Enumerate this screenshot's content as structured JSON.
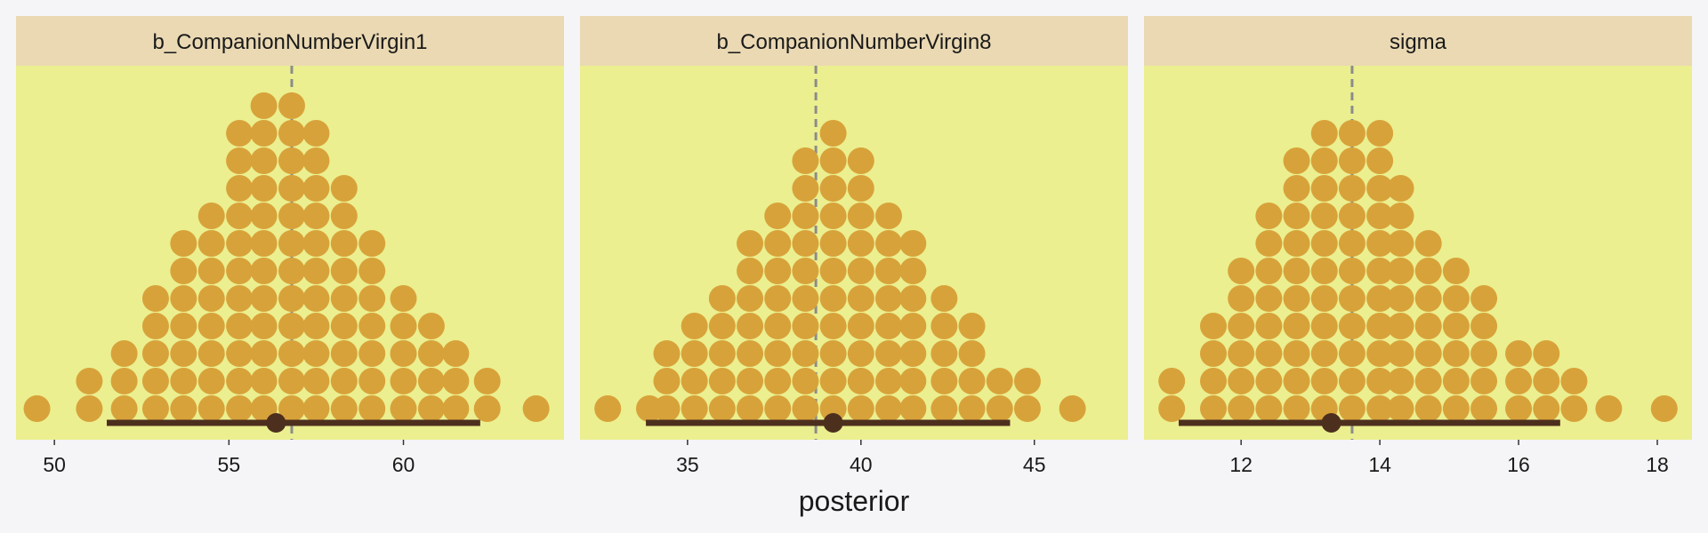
{
  "chart_data": {
    "type": "dotplot",
    "xlabel": "posterior",
    "ylabel": "",
    "grid": false,
    "colors": {
      "page_background": "#f5f5f7",
      "panel_background": "#ebef8f",
      "strip_background": "#ead9b3",
      "dot": "#d8a23a",
      "interval": "#4d2f1e",
      "reference_line": "#8c8c8c"
    },
    "facets": [
      {
        "title": "b_CompanionNumberVirgin1",
        "xlim": [
          48.9,
          64.6
        ],
        "ticks": [
          50,
          55,
          60
        ],
        "reference_line": 56.8,
        "point_estimate": 56.35,
        "interval": [
          51.5,
          62.2
        ],
        "stacks": [
          {
            "x": 49.5,
            "count": 1
          },
          {
            "x": 51.0,
            "count": 2
          },
          {
            "x": 52.0,
            "count": 3
          },
          {
            "x": 52.9,
            "count": 5
          },
          {
            "x": 53.7,
            "count": 7
          },
          {
            "x": 54.5,
            "count": 8
          },
          {
            "x": 55.3,
            "count": 11
          },
          {
            "x": 56.0,
            "count": 12
          },
          {
            "x": 56.8,
            "count": 12
          },
          {
            "x": 57.5,
            "count": 11
          },
          {
            "x": 58.3,
            "count": 9
          },
          {
            "x": 59.1,
            "count": 7
          },
          {
            "x": 60.0,
            "count": 5
          },
          {
            "x": 60.8,
            "count": 4
          },
          {
            "x": 61.5,
            "count": 3
          },
          {
            "x": 62.4,
            "count": 2
          },
          {
            "x": 63.8,
            "count": 1
          }
        ]
      },
      {
        "title": "b_CompanionNumberVirgin8",
        "xlim": [
          31.9,
          47.7
        ],
        "ticks": [
          35,
          40,
          45
        ],
        "reference_line": 38.7,
        "point_estimate": 39.2,
        "interval": [
          33.8,
          44.3
        ],
        "stacks": [
          {
            "x": 32.7,
            "count": 1
          },
          {
            "x": 33.9,
            "count": 1
          },
          {
            "x": 34.4,
            "count": 3
          },
          {
            "x": 35.2,
            "count": 4
          },
          {
            "x": 36.0,
            "count": 5
          },
          {
            "x": 36.8,
            "count": 7
          },
          {
            "x": 37.6,
            "count": 8
          },
          {
            "x": 38.4,
            "count": 10
          },
          {
            "x": 39.2,
            "count": 11
          },
          {
            "x": 40.0,
            "count": 10
          },
          {
            "x": 40.8,
            "count": 8
          },
          {
            "x": 41.5,
            "count": 7
          },
          {
            "x": 42.4,
            "count": 5
          },
          {
            "x": 43.2,
            "count": 4
          },
          {
            "x": 44.0,
            "count": 2
          },
          {
            "x": 44.8,
            "count": 2
          },
          {
            "x": 46.1,
            "count": 1
          }
        ]
      },
      {
        "title": "sigma",
        "xlim": [
          10.6,
          18.5
        ],
        "ticks": [
          12,
          14,
          16,
          18
        ],
        "reference_line": 13.6,
        "point_estimate": 13.3,
        "interval": [
          11.1,
          16.6
        ],
        "stacks": [
          {
            "x": 11.0,
            "count": 2
          },
          {
            "x": 11.6,
            "count": 4
          },
          {
            "x": 12.0,
            "count": 6
          },
          {
            "x": 12.4,
            "count": 8
          },
          {
            "x": 12.8,
            "count": 10
          },
          {
            "x": 13.2,
            "count": 11
          },
          {
            "x": 13.6,
            "count": 11
          },
          {
            "x": 14.0,
            "count": 11
          },
          {
            "x": 14.3,
            "count": 9
          },
          {
            "x": 14.7,
            "count": 7
          },
          {
            "x": 15.1,
            "count": 6
          },
          {
            "x": 15.5,
            "count": 5
          },
          {
            "x": 16.0,
            "count": 3
          },
          {
            "x": 16.4,
            "count": 3
          },
          {
            "x": 16.8,
            "count": 2
          },
          {
            "x": 17.3,
            "count": 1
          },
          {
            "x": 18.1,
            "count": 1
          }
        ]
      }
    ]
  }
}
